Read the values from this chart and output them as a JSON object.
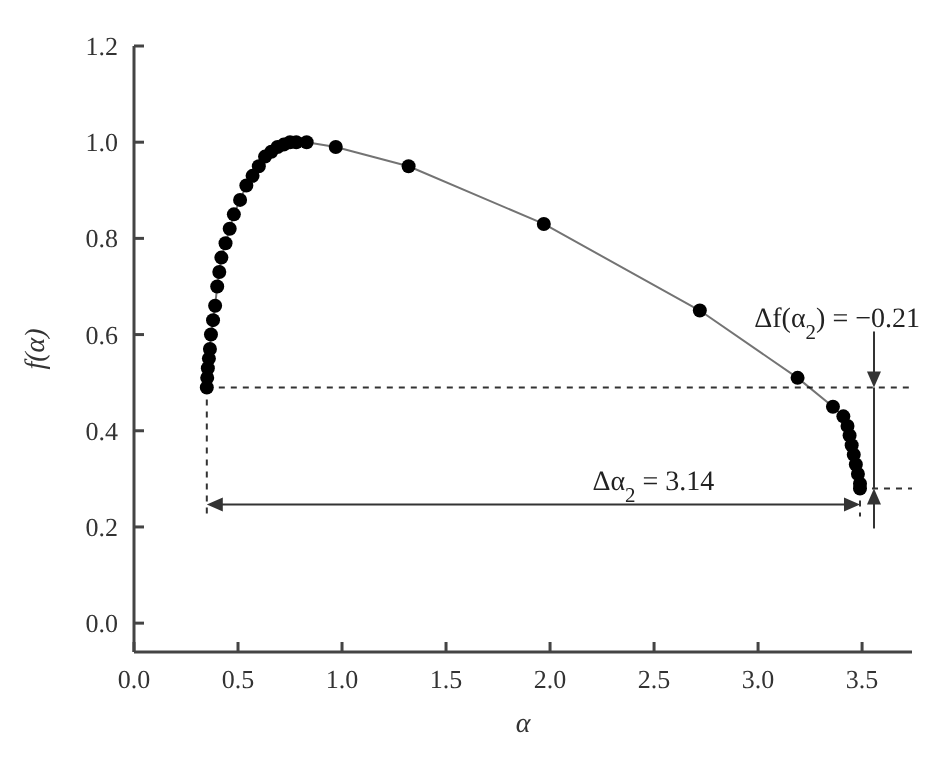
{
  "chart_data": {
    "type": "line",
    "xlabel": "α",
    "ylabel": "f(α)",
    "xlim": [
      0,
      3.74
    ],
    "ylim": [
      -0.06,
      1.2
    ],
    "xticks": [
      {
        "value": 0,
        "label": "0.0"
      },
      {
        "value": 0.5,
        "label": "0.5"
      },
      {
        "value": 1,
        "label": "1.0"
      },
      {
        "value": 1.5,
        "label": "1.5"
      },
      {
        "value": 2,
        "label": "2.0"
      },
      {
        "value": 2.5,
        "label": "2.5"
      },
      {
        "value": 3,
        "label": "3.0"
      },
      {
        "value": 3.5,
        "label": "3.5"
      }
    ],
    "yticks": [
      {
        "value": 0,
        "label": "0.0"
      },
      {
        "value": 0.2,
        "label": "0.2"
      },
      {
        "value": 0.4,
        "label": "0.4"
      },
      {
        "value": 0.6,
        "label": "0.6"
      },
      {
        "value": 0.8,
        "label": "0.8"
      },
      {
        "value": 1,
        "label": "1.0"
      },
      {
        "value": 1.2,
        "label": "1.2"
      }
    ],
    "ref_lines": [
      {
        "axis": "y",
        "value": 0.49,
        "color": "#333333",
        "line_style": "dashed"
      },
      {
        "axis": "x",
        "value": 0.35,
        "color": "#333333",
        "line_style": "dashed"
      }
    ],
    "marker": "circle",
    "line_style": "solid",
    "annotations": [
      "Δf(α$_{2}$) = −0.21",
      "Δα$_{2}$ = 3.14"
    ],
    "series": [
      {
        "color": "#000000",
        "x": [
          0.35,
          0.352,
          0.355,
          0.36,
          0.365,
          0.37,
          0.38,
          0.39,
          0.4,
          0.41,
          0.42,
          0.44,
          0.46,
          0.48,
          0.51,
          0.54,
          0.57,
          0.6,
          0.63,
          0.66,
          0.69,
          0.72,
          0.75,
          0.78,
          0.83,
          0.97,
          1.32,
          1.97,
          2.72,
          3.19,
          3.36,
          3.41,
          3.43,
          3.44,
          3.45,
          3.46,
          3.47,
          3.48,
          3.49,
          3.49
        ],
        "values": [
          0.49,
          0.51,
          0.53,
          0.55,
          0.57,
          0.6,
          0.63,
          0.66,
          0.7,
          0.73,
          0.76,
          0.79,
          0.82,
          0.85,
          0.88,
          0.91,
          0.93,
          0.95,
          0.97,
          0.98,
          0.99,
          0.995,
          1.0,
          1.0,
          1.0,
          0.99,
          0.95,
          0.83,
          0.65,
          0.51,
          0.45,
          0.43,
          0.41,
          0.39,
          0.37,
          0.35,
          0.33,
          0.31,
          0.29,
          0.28
        ]
      }
    ]
  }
}
